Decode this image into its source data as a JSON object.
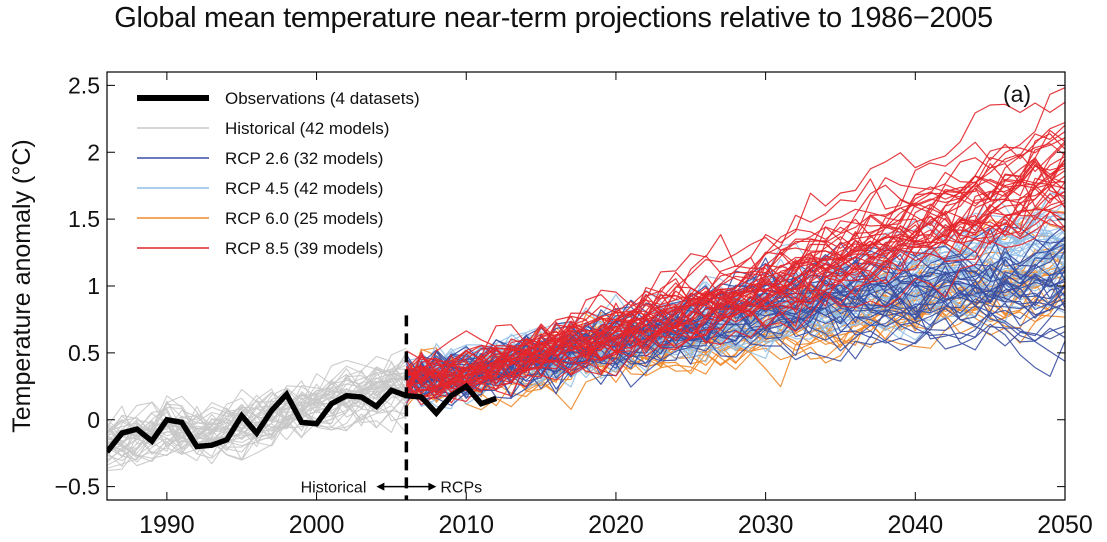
{
  "chart_data": {
    "type": "line",
    "title": "Global mean temperature near-term projections relative to 1986−2005",
    "panel_label": "(a)",
    "xlabel": "",
    "ylabel": "Temperature anomaly (°C)",
    "xlim": [
      1986,
      2050
    ],
    "ylim": [
      -0.6,
      2.6
    ],
    "x_ticks": [
      1990,
      2000,
      2010,
      2020,
      2030,
      2040,
      2050
    ],
    "y_ticks": [
      -0.5,
      0,
      0.5,
      1,
      1.5,
      2,
      2.5
    ],
    "grid": false,
    "legend_position": "top-left",
    "divider": {
      "x": 2006,
      "left_label": "Historical",
      "right_label": "RCPs"
    },
    "colors": {
      "observations": "#000000",
      "historical": "#c8c8c8",
      "rcp26": "#3a4fa3",
      "rcp45": "#8fbde6",
      "rcp60": "#f08a2c",
      "rcp85": "#e3262b"
    },
    "series": [
      {
        "name": "Observations (4 datasets)",
        "key": "observations",
        "x": [
          1986,
          1987,
          1988,
          1989,
          1990,
          1991,
          1992,
          1993,
          1994,
          1995,
          1996,
          1997,
          1998,
          1999,
          2000,
          2001,
          2002,
          2003,
          2004,
          2005,
          2006,
          2007,
          2008,
          2009,
          2010,
          2011,
          2012
        ],
        "values": [
          -0.24,
          -0.1,
          -0.07,
          -0.16,
          0.0,
          -0.02,
          -0.2,
          -0.19,
          -0.15,
          0.03,
          -0.1,
          0.07,
          0.19,
          -0.02,
          -0.03,
          0.12,
          0.18,
          0.17,
          0.1,
          0.22,
          0.18,
          0.17,
          0.05,
          0.18,
          0.25,
          0.12,
          0.16
        ]
      },
      {
        "name": "Historical (42 models)",
        "key": "historical",
        "x": [
          1986,
          1988,
          1990,
          1992,
          1994,
          1996,
          1998,
          2000,
          2002,
          2004,
          2006
        ],
        "mean": [
          -0.17,
          -0.12,
          -0.06,
          -0.12,
          -0.08,
          -0.02,
          0.05,
          0.1,
          0.15,
          0.2,
          0.25
        ],
        "spread": 0.16
      },
      {
        "name": "RCP 2.6 (32 models)",
        "key": "rcp26",
        "x": [
          2006,
          2010,
          2020,
          2030,
          2040,
          2050
        ],
        "mean": [
          0.3,
          0.36,
          0.6,
          0.85,
          0.95,
          1.0
        ],
        "spread": 0.5
      },
      {
        "name": "RCP 4.5 (42 models)",
        "key": "rcp45",
        "x": [
          2006,
          2010,
          2020,
          2030,
          2040,
          2050
        ],
        "mean": [
          0.3,
          0.36,
          0.6,
          0.85,
          1.1,
          1.3
        ],
        "spread": 0.45
      },
      {
        "name": "RCP 6.0 (25 models)",
        "key": "rcp60",
        "x": [
          2006,
          2010,
          2020,
          2030,
          2040,
          2050
        ],
        "mean": [
          0.3,
          0.34,
          0.52,
          0.72,
          0.9,
          1.1
        ],
        "spread": 0.4
      },
      {
        "name": "RCP 8.5 (39 models)",
        "key": "rcp85",
        "x": [
          2006,
          2010,
          2020,
          2030,
          2040,
          2050
        ],
        "mean": [
          0.3,
          0.37,
          0.66,
          1.0,
          1.42,
          1.85
        ],
        "spread": 0.55
      }
    ]
  }
}
